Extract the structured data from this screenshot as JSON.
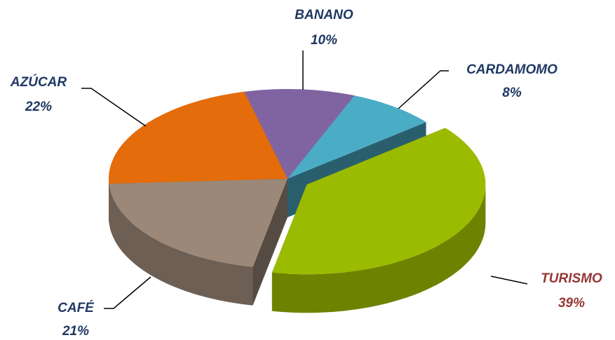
{
  "chart_data": {
    "type": "pie3d",
    "categories": [
      "BANANO",
      "CARDAMOMO",
      "TURISMO",
      "CAFÉ",
      "AZÚCAR"
    ],
    "values": [
      10,
      8,
      39,
      21,
      22
    ],
    "value_labels": [
      "10%",
      "8%",
      "39%",
      "21%",
      "22%"
    ],
    "colors": [
      "#8064a2",
      "#4bacc6",
      "#9bbb00",
      "#9c8878",
      "#e46c0a"
    ],
    "label_colors": [
      "#1f3864",
      "#1f3864",
      "#953735",
      "#1f3864",
      "#1f3864"
    ],
    "exploded": [
      false,
      false,
      true,
      false,
      false
    ]
  }
}
